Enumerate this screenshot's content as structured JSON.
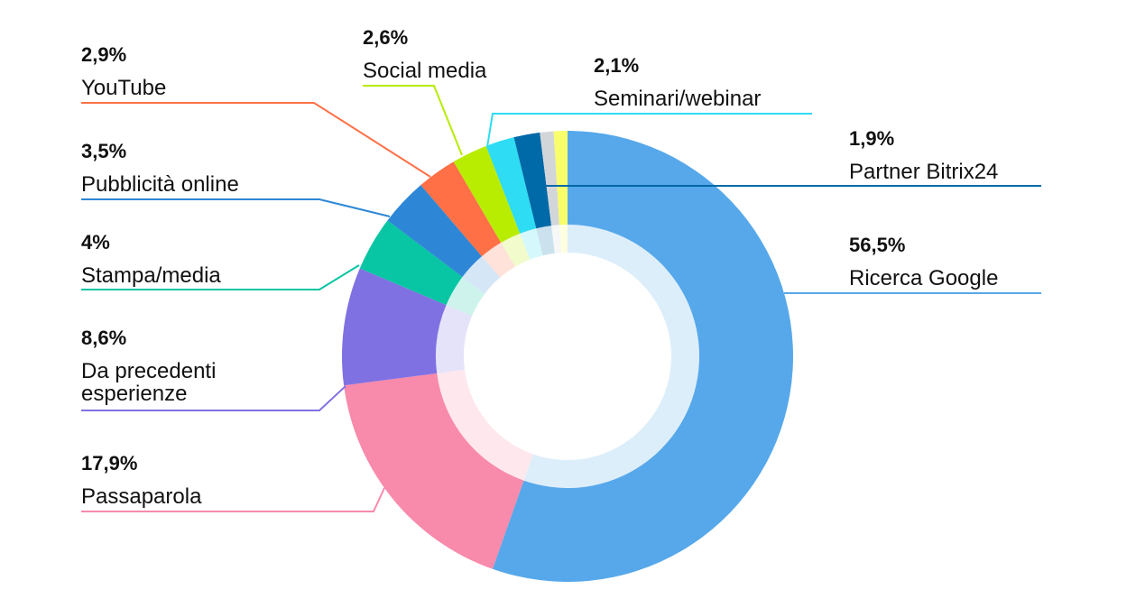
{
  "chart_data": {
    "type": "pie",
    "variant": "donut",
    "title": "",
    "unit": "%",
    "slices": [
      {
        "label": "Ricerca Google",
        "value": 56.5,
        "value_label": "56,5%",
        "color": "#56a8ea"
      },
      {
        "label": "Passaparola",
        "value": 17.9,
        "value_label": "17,9%",
        "color": "#f88aab"
      },
      {
        "label": "Da precedenti esperienze",
        "label_lines": [
          "Da precedenti",
          "esperienze"
        ],
        "value": 8.6,
        "value_label": "8,6%",
        "color": "#7f71e2"
      },
      {
        "label": "Stampa/media",
        "value": 4,
        "value_label": "4%",
        "color": "#08c5a3"
      },
      {
        "label": "Pubblicità online",
        "value": 3.5,
        "value_label": "3,5%",
        "color": "#2d87d6"
      },
      {
        "label": "YouTube",
        "value": 2.9,
        "value_label": "2,9%",
        "color": "#ff7046"
      },
      {
        "label": "Social media",
        "value": 2.6,
        "value_label": "2,6%",
        "color": "#b8ec00"
      },
      {
        "label": "Seminari/webinar",
        "value": 2.1,
        "value_label": "2,1%",
        "color": "#2edcf3"
      },
      {
        "label": "Partner Bitrix24",
        "value": 1.9,
        "value_label": "1,9%",
        "color": "#0069a8"
      },
      {
        "label": "",
        "value": 1.0,
        "value_label": "",
        "color": "#d3d6d9"
      },
      {
        "label": "",
        "value": 1.0,
        "value_label": "",
        "color": "#f8ff6a"
      }
    ]
  }
}
